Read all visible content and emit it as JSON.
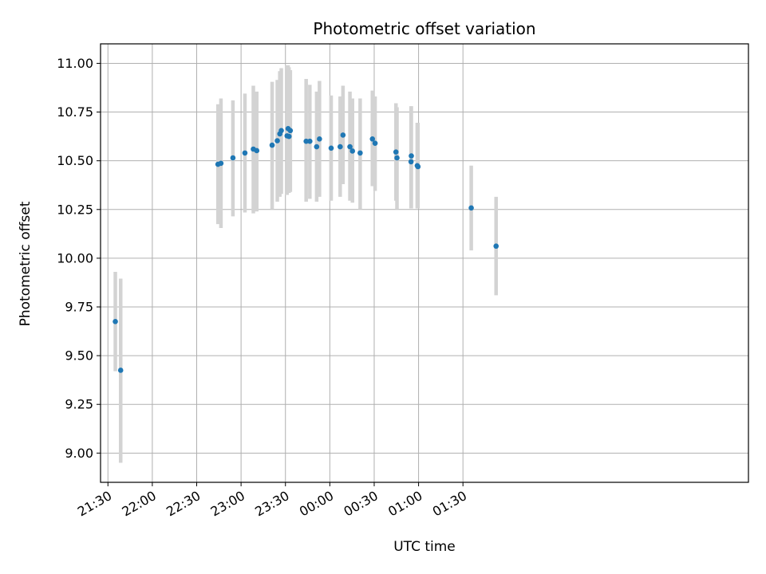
{
  "chart_data": {
    "type": "scatter",
    "title": "Photometric offset variation",
    "xlabel": "UTC time",
    "ylabel": "Photometric offset",
    "x_unit": "minutes",
    "xlim": [
      1285,
      1723
    ],
    "ylim": [
      8.85,
      11.1
    ],
    "grid": true,
    "x_ticks": [
      {
        "value": 1290,
        "label": "21:30"
      },
      {
        "value": 1320,
        "label": "22:00"
      },
      {
        "value": 1350,
        "label": "22:30"
      },
      {
        "value": 1380,
        "label": "23:00"
      },
      {
        "value": 1410,
        "label": "23:30"
      },
      {
        "value": 1440,
        "label": "00:00"
      },
      {
        "value": 1470,
        "label": "00:30"
      },
      {
        "value": 1500,
        "label": "01:00"
      },
      {
        "value": 1530,
        "label": "01:30"
      }
    ],
    "y_ticks": [
      {
        "value": 9.0,
        "label": "9.00"
      },
      {
        "value": 9.25,
        "label": "9.25"
      },
      {
        "value": 9.5,
        "label": "9.50"
      },
      {
        "value": 9.75,
        "label": "9.75"
      },
      {
        "value": 10.0,
        "label": "10.00"
      },
      {
        "value": 10.25,
        "label": "10.25"
      },
      {
        "value": 10.5,
        "label": "10.50"
      },
      {
        "value": 10.75,
        "label": "10.75"
      },
      {
        "value": 11.0,
        "label": "11.00"
      }
    ],
    "marker_color": "#1f77b4",
    "errorbar_color": "#d3d3d3",
    "points": [
      {
        "x": 1295.0,
        "y": 9.675,
        "lo": 9.42,
        "hi": 9.93
      },
      {
        "x": 1298.6,
        "y": 9.425,
        "lo": 8.95,
        "hi": 9.895
      },
      {
        "x": 1364.4,
        "y": 10.482,
        "lo": 10.175,
        "hi": 10.79
      },
      {
        "x": 1366.4,
        "y": 10.487,
        "lo": 10.155,
        "hi": 10.82
      },
      {
        "x": 1374.5,
        "y": 10.515,
        "lo": 10.215,
        "hi": 10.81
      },
      {
        "x": 1382.6,
        "y": 10.54,
        "lo": 10.235,
        "hi": 10.845
      },
      {
        "x": 1388.3,
        "y": 10.56,
        "lo": 10.23,
        "hi": 10.885
      },
      {
        "x": 1390.6,
        "y": 10.552,
        "lo": 10.24,
        "hi": 10.855
      },
      {
        "x": 1401.0,
        "y": 10.58,
        "lo": 10.25,
        "hi": 10.905
      },
      {
        "x": 1404.5,
        "y": 10.603,
        "lo": 10.29,
        "hi": 10.915
      },
      {
        "x": 1406.2,
        "y": 10.638,
        "lo": 10.315,
        "hi": 10.96
      },
      {
        "x": 1407.2,
        "y": 10.655,
        "lo": 10.33,
        "hi": 10.975
      },
      {
        "x": 1411.1,
        "y": 10.628,
        "lo": 10.325,
        "hi": 10.99
      },
      {
        "x": 1411.8,
        "y": 10.665,
        "lo": 10.335,
        "hi": 10.99
      },
      {
        "x": 1412.4,
        "y": 10.625,
        "lo": 10.335,
        "hi": 10.98
      },
      {
        "x": 1413.3,
        "y": 10.655,
        "lo": 10.34,
        "hi": 10.965
      },
      {
        "x": 1424.0,
        "y": 10.6,
        "lo": 10.29,
        "hi": 10.92
      },
      {
        "x": 1426.5,
        "y": 10.6,
        "lo": 10.305,
        "hi": 10.89
      },
      {
        "x": 1431.1,
        "y": 10.572,
        "lo": 10.29,
        "hi": 10.855
      },
      {
        "x": 1433.0,
        "y": 10.612,
        "lo": 10.315,
        "hi": 10.91
      },
      {
        "x": 1440.9,
        "y": 10.565,
        "lo": 10.295,
        "hi": 10.835
      },
      {
        "x": 1447.0,
        "y": 10.572,
        "lo": 10.315,
        "hi": 10.83
      },
      {
        "x": 1448.9,
        "y": 10.632,
        "lo": 10.38,
        "hi": 10.885
      },
      {
        "x": 1453.6,
        "y": 10.572,
        "lo": 10.295,
        "hi": 10.855
      },
      {
        "x": 1455.3,
        "y": 10.55,
        "lo": 10.285,
        "hi": 10.82
      },
      {
        "x": 1460.5,
        "y": 10.54,
        "lo": 10.25,
        "hi": 10.82
      },
      {
        "x": 1468.8,
        "y": 10.612,
        "lo": 10.37,
        "hi": 10.86
      },
      {
        "x": 1470.6,
        "y": 10.59,
        "lo": 10.345,
        "hi": 10.83
      },
      {
        "x": 1484.7,
        "y": 10.545,
        "lo": 10.295,
        "hi": 10.795
      },
      {
        "x": 1485.4,
        "y": 10.515,
        "lo": 10.25,
        "hi": 10.775
      },
      {
        "x": 1494.9,
        "y": 10.495,
        "lo": 10.255,
        "hi": 10.78
      },
      {
        "x": 1495.1,
        "y": 10.525,
        "lo": 10.255,
        "hi": 10.78
      },
      {
        "x": 1499.1,
        "y": 10.475,
        "lo": 10.255,
        "hi": 10.695
      },
      {
        "x": 1499.6,
        "y": 10.47,
        "lo": 10.255,
        "hi": 10.695
      },
      {
        "x": 1535.6,
        "y": 10.258,
        "lo": 10.04,
        "hi": 10.475
      },
      {
        "x": 1552.4,
        "y": 10.062,
        "lo": 9.81,
        "hi": 10.315
      }
    ]
  }
}
